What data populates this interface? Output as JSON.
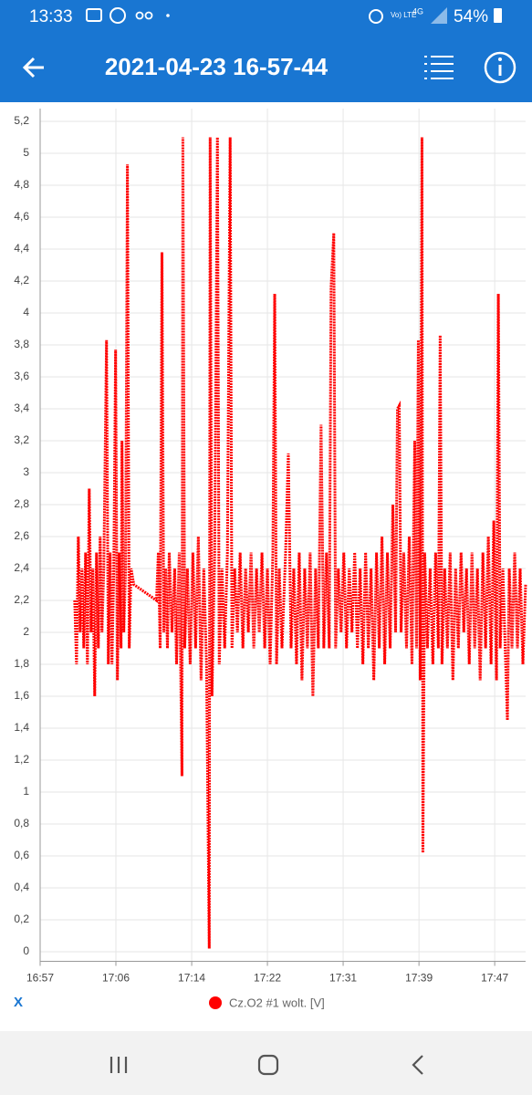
{
  "status_bar": {
    "time": "13:33",
    "volte": "Vo) LTE",
    "network": "4G",
    "battery": "54%"
  },
  "app_bar": {
    "title": "2021-04-23 16-57-44"
  },
  "controls": {
    "close": "X"
  },
  "chart_data": {
    "type": "line",
    "x": [
      1020.8,
      1021.0,
      1021.2,
      1021.4,
      1021.6,
      1021.8,
      1022.0,
      1022.2,
      1022.4,
      1022.6,
      1022.8,
      1023.0,
      1023.2,
      1023.4,
      1023.6,
      1023.8,
      1024.0,
      1024.3,
      1024.5,
      1024.7,
      1024.9,
      1025.1,
      1025.3,
      1025.5,
      1025.7,
      1025.9,
      1026.0,
      1026.2,
      1026.4,
      1026.6,
      1026.8,
      1027.0,
      1027.3,
      1029.8,
      1030.0,
      1030.2,
      1030.4,
      1030.6,
      1030.8,
      1031.0,
      1031.2,
      1031.5,
      1031.8,
      1032.0,
      1032.3,
      1032.6,
      1032.7,
      1032.9,
      1033.2,
      1033.5,
      1033.8,
      1034.1,
      1034.4,
      1034.7,
      1035.0,
      1035.3,
      1035.6,
      1035.7,
      1035.9,
      1036.2,
      1036.5,
      1036.7,
      1037.0,
      1037.3,
      1037.6,
      1037.9,
      1038.1,
      1038.4,
      1038.7,
      1039.0,
      1039.3,
      1039.6,
      1039.9,
      1040.2,
      1040.5,
      1040.8,
      1041.1,
      1041.4,
      1041.7,
      1042.0,
      1042.3,
      1042.6,
      1042.8,
      1043.0,
      1043.3,
      1043.6,
      1044.0,
      1044.3,
      1044.6,
      1044.9,
      1045.2,
      1045.5,
      1045.8,
      1046.1,
      1046.4,
      1046.7,
      1047.0,
      1047.3,
      1047.6,
      1047.9,
      1048.2,
      1048.5,
      1048.8,
      1049.0,
      1049.3,
      1049.5,
      1049.8,
      1050.1,
      1050.4,
      1050.7,
      1051.0,
      1051.3,
      1051.6,
      1051.9,
      1052.2,
      1052.5,
      1052.8,
      1053.1,
      1053.4,
      1053.7,
      1054.0,
      1054.3,
      1054.6,
      1054.9,
      1055.2,
      1055.5,
      1055.8,
      1056.1,
      1056.3,
      1056.5,
      1056.7,
      1057.0,
      1057.3,
      1057.6,
      1057.9,
      1058.2,
      1058.4,
      1058.6,
      1058.8,
      1059.0,
      1059.1,
      1059.3,
      1059.6,
      1059.9,
      1060.2,
      1060.5,
      1060.8,
      1061.0,
      1061.2,
      1061.5,
      1061.8,
      1062.1,
      1062.4,
      1062.7,
      1063.0,
      1063.3,
      1063.6,
      1063.9,
      1064.2,
      1064.5,
      1064.8,
      1065.1,
      1065.4,
      1065.7,
      1066.0,
      1066.3,
      1066.6,
      1066.9,
      1067.2,
      1067.4,
      1067.6,
      1067.9,
      1068.1,
      1068.4,
      1068.6,
      1068.9,
      1069.2,
      1069.5,
      1069.8,
      1070.1,
      1070.4
    ],
    "series": [
      {
        "name": "Cz.O2 #1 wolt. [V]",
        "color": "#ff0000",
        "values": [
          2.2,
          1.8,
          2.6,
          2.0,
          2.4,
          1.9,
          2.5,
          1.8,
          2.9,
          2.0,
          2.4,
          1.6,
          2.5,
          1.9,
          2.6,
          2.0,
          2.4,
          3.83,
          1.8,
          2.5,
          1.8,
          2.4,
          3.77,
          1.7,
          2.5,
          1.9,
          3.2,
          2.0,
          2.4,
          4.93,
          1.9,
          2.4,
          2.3,
          2.2,
          2.5,
          1.9,
          4.38,
          2.0,
          2.4,
          1.9,
          2.5,
          2.0,
          2.4,
          1.8,
          2.5,
          1.1,
          5.1,
          1.9,
          2.4,
          1.8,
          2.5,
          1.9,
          2.6,
          1.7,
          2.4,
          1.8,
          0.02,
          5.1,
          1.6,
          2.5,
          5.1,
          1.8,
          2.4,
          1.9,
          2.5,
          5.1,
          1.9,
          2.4,
          2.0,
          2.5,
          1.9,
          2.4,
          2.0,
          2.5,
          1.9,
          2.4,
          2.0,
          2.5,
          1.9,
          2.4,
          1.8,
          2.5,
          4.12,
          1.8,
          2.4,
          1.9,
          2.5,
          3.12,
          1.9,
          2.4,
          1.8,
          2.5,
          1.7,
          2.4,
          1.9,
          2.5,
          1.6,
          2.4,
          1.9,
          3.3,
          1.9,
          2.5,
          1.9,
          4.16,
          4.5,
          1.9,
          2.4,
          2.0,
          2.5,
          1.9,
          2.4,
          2.0,
          2.5,
          1.9,
          2.4,
          1.8,
          2.5,
          1.9,
          2.4,
          1.7,
          2.5,
          1.9,
          2.6,
          1.8,
          2.5,
          1.9,
          2.8,
          2.0,
          3.4,
          3.42,
          2.0,
          2.5,
          1.9,
          2.6,
          1.8,
          3.2,
          1.9,
          3.83,
          1.7,
          5.1,
          0.62,
          2.5,
          1.9,
          2.4,
          1.8,
          2.5,
          1.9,
          3.86,
          1.8,
          2.4,
          1.9,
          2.5,
          1.7,
          2.4,
          1.9,
          2.5,
          2.0,
          2.4,
          1.8,
          2.5,
          1.9,
          2.4,
          1.7,
          2.5,
          1.9,
          2.6,
          1.8,
          2.7,
          1.7,
          4.12,
          1.9,
          2.4,
          2.0,
          1.45,
          2.4,
          1.9,
          2.5,
          1.9,
          2.4,
          1.8,
          2.3
        ]
      }
    ],
    "xlim": [
      1017,
      1070.4
    ],
    "xticks": [
      {
        "value": 1017,
        "label": "16:57"
      },
      {
        "value": 1025.33,
        "label": "17:06"
      },
      {
        "value": 1033.67,
        "label": "17:14"
      },
      {
        "value": 1042,
        "label": "17:22"
      },
      {
        "value": 1050.33,
        "label": "17:31"
      },
      {
        "value": 1058.67,
        "label": "17:39"
      },
      {
        "value": 1067,
        "label": "17:47"
      }
    ],
    "ylim": [
      -0.06,
      5.28
    ],
    "yticks": [
      0,
      {
        "value": 0.2,
        "label": "0,2"
      },
      {
        "value": 0.4,
        "label": "0,4"
      },
      {
        "value": 0.6,
        "label": "0,6"
      },
      {
        "value": 0.8,
        "label": "0,8"
      },
      1,
      {
        "value": 1.2,
        "label": "1,2"
      },
      {
        "value": 1.4,
        "label": "1,4"
      },
      {
        "value": 1.6,
        "label": "1,6"
      },
      {
        "value": 1.8,
        "label": "1,8"
      },
      2,
      {
        "value": 2.2,
        "label": "2,2"
      },
      {
        "value": 2.4,
        "label": "2,4"
      },
      {
        "value": 2.6,
        "label": "2,6"
      },
      {
        "value": 2.8,
        "label": "2,8"
      },
      3,
      {
        "value": 3.2,
        "label": "3,2"
      },
      {
        "value": 3.4,
        "label": "3,4"
      },
      {
        "value": 3.6,
        "label": "3,6"
      },
      {
        "value": 3.8,
        "label": "3,8"
      },
      4,
      {
        "value": 4.2,
        "label": "4,2"
      },
      {
        "value": 4.4,
        "label": "4,4"
      },
      {
        "value": 4.6,
        "label": "4,6"
      },
      {
        "value": 4.8,
        "label": "4,8"
      },
      5,
      {
        "value": 5.2,
        "label": "5,2"
      }
    ],
    "grid": true,
    "legend": "bottom"
  }
}
